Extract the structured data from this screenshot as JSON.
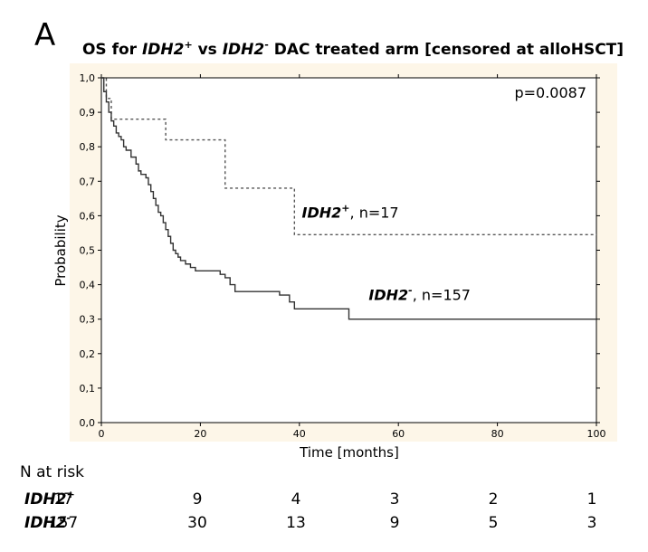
{
  "panel_letter": "A",
  "title_parts": {
    "t1": "OS for ",
    "g1": "IDH2",
    "s1": "+",
    "t2": " vs ",
    "g2": "IDH2",
    "s2": "-",
    "t3": " DAC treated arm [censored at alloHSCT]"
  },
  "chart_data": {
    "type": "line",
    "title": "OS for IDH2+ vs IDH2- DAC treated arm [censored at alloHSCT]",
    "xlabel": "Time [months]",
    "ylabel": "Probability",
    "xlim": [
      0,
      100
    ],
    "ylim": [
      0,
      1
    ],
    "x_ticks": [
      0,
      20,
      40,
      60,
      80,
      100
    ],
    "y_ticks": [
      "0,0",
      "0,1",
      "0,2",
      "0,3",
      "0,4",
      "0,5",
      "0,6",
      "0,7",
      "0,8",
      "0,9",
      "1,0"
    ],
    "grid": false,
    "pvalue": "p=0.0087",
    "series": [
      {
        "name": "IDH2+",
        "style": "dotted",
        "color": "#555555",
        "steps": [
          [
            0,
            1.0
          ],
          [
            1,
            0.94
          ],
          [
            2,
            0.88
          ],
          [
            13,
            0.82
          ],
          [
            25,
            0.68
          ],
          [
            39,
            0.545
          ],
          [
            100,
            0.545
          ]
        ]
      },
      {
        "name": "IDH2-",
        "style": "solid",
        "color": "#333333",
        "steps": [
          [
            0,
            1.0
          ],
          [
            0.5,
            0.96
          ],
          [
            1,
            0.93
          ],
          [
            1.5,
            0.9
          ],
          [
            2,
            0.875
          ],
          [
            2.5,
            0.86
          ],
          [
            3,
            0.84
          ],
          [
            3.5,
            0.83
          ],
          [
            4,
            0.82
          ],
          [
            4.5,
            0.8
          ],
          [
            5,
            0.79
          ],
          [
            6,
            0.77
          ],
          [
            7,
            0.75
          ],
          [
            7.5,
            0.73
          ],
          [
            8,
            0.72
          ],
          [
            9,
            0.71
          ],
          [
            9.5,
            0.69
          ],
          [
            10,
            0.67
          ],
          [
            10.5,
            0.65
          ],
          [
            11,
            0.63
          ],
          [
            11.5,
            0.61
          ],
          [
            12,
            0.6
          ],
          [
            12.5,
            0.58
          ],
          [
            13,
            0.56
          ],
          [
            13.5,
            0.54
          ],
          [
            14,
            0.52
          ],
          [
            14.5,
            0.5
          ],
          [
            15,
            0.49
          ],
          [
            15.5,
            0.48
          ],
          [
            16,
            0.47
          ],
          [
            17,
            0.46
          ],
          [
            18,
            0.45
          ],
          [
            19,
            0.44
          ],
          [
            22,
            0.44
          ],
          [
            24,
            0.43
          ],
          [
            25,
            0.42
          ],
          [
            26,
            0.4
          ],
          [
            27,
            0.38
          ],
          [
            31,
            0.38
          ],
          [
            35,
            0.38
          ],
          [
            36,
            0.37
          ],
          [
            38,
            0.35
          ],
          [
            39,
            0.33
          ],
          [
            44,
            0.33
          ],
          [
            49,
            0.33
          ],
          [
            50,
            0.3
          ],
          [
            100,
            0.3
          ]
        ]
      }
    ],
    "annotations": [
      {
        "bold": "IDH2",
        "sup": "+",
        "rest": ", n=17",
        "x": 40.5,
        "y": 0.595
      },
      {
        "bold": "IDH2",
        "sup": "-",
        "rest": ", n=157",
        "x": 54,
        "y": 0.355
      }
    ]
  },
  "risk_table": {
    "heading": "N at risk",
    "rows": [
      {
        "name": "IDH2",
        "sup": "+",
        "values": [
          "17",
          "9",
          "4",
          "3",
          "2",
          "1"
        ]
      },
      {
        "name": "IDH2",
        "sup": "-",
        "values": [
          "157",
          "30",
          "13",
          "9",
          "5",
          "3"
        ]
      }
    ]
  },
  "colors": {
    "plot_background": "#fdf6e8",
    "axis": "#000000"
  }
}
